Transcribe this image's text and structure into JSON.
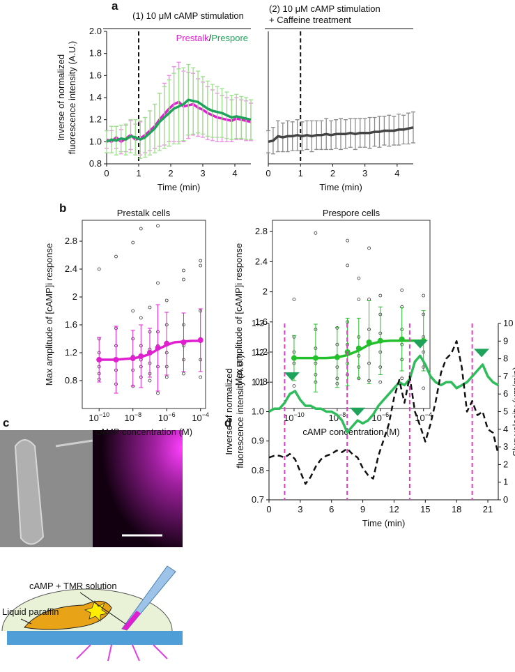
{
  "panel_labels": [
    "a",
    "b",
    "c",
    "d"
  ],
  "panel_c": {
    "labels": [
      "cAMP + TMR solution",
      "Liquid paraffin"
    ]
  },
  "chart_data": [
    {
      "type": "line",
      "title": "(1) 10 μM cAMP stimulation",
      "ylabel": [
        "Inverse of normalized",
        "fluorescence intensity (A.U.)"
      ],
      "xlabel": "Time (min)",
      "x": [
        0,
        0.15,
        0.3,
        0.45,
        0.6,
        0.75,
        0.9,
        1.05,
        1.2,
        1.35,
        1.5,
        1.65,
        1.8,
        1.95,
        2.1,
        2.25,
        2.4,
        2.55,
        2.7,
        2.85,
        3.0,
        3.15,
        3.3,
        3.45,
        3.6,
        3.75,
        3.9,
        4.05,
        4.2,
        4.35,
        4.5
      ],
      "series": [
        {
          "name": "Prestalk",
          "color": "#e020d0",
          "error_color": "#ec8fe4",
          "values": [
            1.02,
            1.0,
            1.04,
            1.0,
            1.03,
            1.06,
            1.02,
            1.03,
            1.06,
            1.1,
            1.14,
            1.2,
            1.25,
            1.3,
            1.34,
            1.36,
            1.32,
            1.33,
            1.34,
            1.31,
            1.29,
            1.26,
            1.24,
            1.22,
            1.21,
            1.2,
            1.19,
            1.21,
            1.2,
            1.19,
            1.18
          ],
          "errors": [
            0.08,
            0.1,
            0.1,
            0.11,
            0.12,
            0.13,
            0.14,
            0.15,
            0.16,
            0.18,
            0.2,
            0.24,
            0.28,
            0.3,
            0.34,
            0.36,
            0.32,
            0.3,
            0.28,
            0.26,
            0.25,
            0.24,
            0.23,
            0.22,
            0.21,
            0.2,
            0.19,
            0.19,
            0.18,
            0.18,
            0.17
          ]
        },
        {
          "name": "Prespore",
          "color": "#1fa35a",
          "error_color": "#9be08a",
          "values": [
            1.0,
            1.02,
            1.01,
            1.03,
            1.02,
            1.05,
            1.04,
            1.02,
            1.04,
            1.08,
            1.12,
            1.18,
            1.22,
            1.26,
            1.3,
            1.32,
            1.34,
            1.38,
            1.37,
            1.36,
            1.33,
            1.3,
            1.28,
            1.27,
            1.26,
            1.24,
            1.22,
            1.23,
            1.22,
            1.21,
            1.2
          ],
          "errors": [
            0.1,
            0.12,
            0.13,
            0.12,
            0.14,
            0.15,
            0.16,
            0.17,
            0.18,
            0.2,
            0.22,
            0.26,
            0.28,
            0.3,
            0.32,
            0.34,
            0.33,
            0.32,
            0.3,
            0.28,
            0.26,
            0.25,
            0.24,
            0.23,
            0.22,
            0.21,
            0.2,
            0.2,
            0.19,
            0.19,
            0.18
          ]
        }
      ],
      "legend_separator": "/",
      "vlines": [
        1
      ],
      "xlim": [
        0,
        4.5
      ],
      "xticks": [
        0,
        1,
        2,
        3,
        4
      ],
      "ylim": [
        0.8,
        2.0
      ],
      "yticks": [
        0.8,
        {
          "value": 1,
          "label": "1.0"
        },
        1.2,
        1.4,
        1.6,
        1.8,
        {
          "value": 2,
          "label": "2.0"
        }
      ]
    },
    {
      "type": "line",
      "title": [
        "(2) 10 μM cAMP stimulation",
        "+ Caffeine treatment"
      ],
      "xlabel": "Time (min)",
      "x": [
        0,
        0.15,
        0.3,
        0.45,
        0.6,
        0.75,
        0.9,
        1.05,
        1.2,
        1.35,
        1.5,
        1.65,
        1.8,
        1.95,
        2.1,
        2.25,
        2.4,
        2.55,
        2.7,
        2.85,
        3.0,
        3.15,
        3.3,
        3.45,
        3.6,
        3.75,
        3.9,
        4.05,
        4.2,
        4.35,
        4.5
      ],
      "series": [
        {
          "color": "#444444",
          "error_color": "#8c8c8c",
          "values": [
            1.0,
            1.01,
            1.05,
            1.04,
            1.05,
            1.05,
            1.06,
            1.05,
            1.06,
            1.05,
            1.06,
            1.06,
            1.07,
            1.06,
            1.07,
            1.07,
            1.07,
            1.08,
            1.07,
            1.08,
            1.08,
            1.08,
            1.09,
            1.09,
            1.1,
            1.1,
            1.1,
            1.11,
            1.11,
            1.12,
            1.13
          ],
          "errors": [
            0.1,
            0.12,
            0.14,
            0.13,
            0.14,
            0.13,
            0.14,
            0.13,
            0.13,
            0.14,
            0.13,
            0.13,
            0.14,
            0.13,
            0.13,
            0.14,
            0.13,
            0.13,
            0.14,
            0.13,
            0.13,
            0.14,
            0.13,
            0.14,
            0.13,
            0.14,
            0.13,
            0.14,
            0.13,
            0.14,
            0.14
          ]
        }
      ],
      "vlines": [
        1
      ],
      "xlim": [
        0,
        4.5
      ],
      "xticks": [
        0,
        1,
        2,
        3,
        4
      ],
      "ylim": [
        0.8,
        2.0
      ]
    },
    {
      "type": "scatter",
      "title": "Prestalk cells",
      "title_color": "#e020d0",
      "ylabel": "Max amplitude of [cAMP]i response",
      "xlabel": "cAMP concentration (M)",
      "xscale": "log",
      "frame": true,
      "color": "#e020d0",
      "points": {
        "x": [
          1e-10,
          1e-10,
          1e-10,
          1e-10,
          1e-10,
          1e-10,
          1e-09,
          1e-09,
          1e-09,
          1e-09,
          1e-09,
          1e-09,
          1e-08,
          1e-08,
          1e-08,
          1e-08,
          1e-08,
          1e-08,
          3e-08,
          3e-08,
          3e-08,
          3e-08,
          3e-08,
          3e-08,
          1e-07,
          1e-07,
          1e-07,
          1e-07,
          1e-07,
          1e-07,
          3e-07,
          3e-07,
          3e-07,
          3e-07,
          3e-07,
          3e-07,
          1e-06,
          1e-06,
          1e-06,
          1e-06,
          1e-06,
          1e-06,
          1e-05,
          1e-05,
          1e-05,
          1e-05,
          1e-05,
          1e-05,
          0.0001,
          0.0001,
          0.0001,
          0.0001,
          0.0001,
          0.0001
        ],
        "y": [
          2.4,
          1.4,
          1.2,
          1.0,
          0.9,
          0.82,
          2.58,
          1.55,
          1.3,
          1.1,
          0.95,
          0.75,
          2.78,
          1.8,
          1.4,
          1.15,
          0.95,
          0.72,
          2.98,
          1.7,
          1.3,
          1.1,
          1.0,
          0.85,
          1.85,
          1.5,
          1.25,
          1.05,
          0.9,
          0.8,
          3.02,
          2.2,
          1.5,
          1.3,
          1.0,
          0.62,
          1.95,
          1.6,
          1.35,
          1.2,
          1.0,
          0.85,
          2.38,
          2.25,
          1.6,
          1.3,
          1.1,
          0.9,
          2.52,
          2.45,
          1.8,
          1.4,
          1.1,
          0.85
        ]
      },
      "conc": [
        1e-10,
        1e-09,
        1e-08,
        3e-08,
        1e-07,
        3e-07,
        1e-06,
        1e-05,
        0.0001
      ],
      "means": [
        1.1,
        1.1,
        1.12,
        1.15,
        1.2,
        1.27,
        1.33,
        1.35,
        1.38
      ],
      "errors": [
        0.32,
        0.48,
        0.4,
        0.45,
        0.35,
        0.62,
        0.45,
        0.42,
        0.45
      ],
      "fit": {
        "x": [
          1e-10,
          3e-10,
          1e-09,
          3e-09,
          1e-08,
          3e-08,
          1e-07,
          3e-07,
          1e-06,
          3e-06,
          1e-05,
          3e-05,
          0.0001
        ],
        "y": [
          1.1,
          1.1,
          1.1,
          1.11,
          1.12,
          1.14,
          1.18,
          1.25,
          1.31,
          1.35,
          1.36,
          1.37,
          1.37
        ]
      },
      "xlim": [
        1e-11,
        0.0002
      ],
      "xticks": [
        {
          "value": 1e-10,
          "label": "10−10"
        },
        {
          "value": 1e-08,
          "label": "10−8"
        },
        {
          "value": 1e-06,
          "label": "10−6"
        },
        {
          "value": 0.0001,
          "label": "10−4"
        }
      ],
      "ylim": [
        0.4,
        3.1
      ],
      "yticks": [
        0.8,
        1.2,
        1.6,
        2,
        2.4,
        2.8
      ]
    },
    {
      "type": "scatter",
      "title": "Prespore cells",
      "title_color": "#22b03a",
      "ylabel": "Max amplitude of [cAMP]i response",
      "xlabel": "cAMP concentration (M)",
      "xscale": "log",
      "frame": true,
      "color": "#22c02a",
      "points": {
        "x": [
          1e-10,
          1e-10,
          1e-10,
          1e-10,
          1e-10,
          1e-10,
          1e-09,
          1e-09,
          1e-09,
          1e-09,
          1e-09,
          1e-09,
          1e-08,
          1e-08,
          1e-08,
          1e-08,
          1e-08,
          1e-08,
          3e-08,
          3e-08,
          3e-08,
          3e-08,
          3e-08,
          3e-08,
          1e-07,
          1e-07,
          1e-07,
          1e-07,
          1e-07,
          1e-07,
          3e-07,
          3e-07,
          3e-07,
          3e-07,
          3e-07,
          3e-07,
          1e-06,
          1e-06,
          1e-06,
          1e-06,
          1e-06,
          1e-06,
          1e-05,
          1e-05,
          1e-05,
          1e-05,
          1e-05,
          1e-05,
          0.0001,
          0.0001,
          0.0001,
          0.0001,
          0.0001,
          0.0001
        ],
        "y": [
          1.9,
          1.4,
          1.2,
          1.05,
          0.9,
          0.75,
          2.78,
          1.5,
          1.25,
          1.05,
          0.9,
          0.8,
          1.52,
          1.3,
          1.15,
          1.0,
          0.85,
          0.78,
          2.68,
          2.35,
          1.6,
          1.3,
          1.05,
          0.9,
          2.18,
          1.9,
          1.4,
          1.15,
          1.0,
          0.85,
          2.58,
          1.9,
          1.5,
          1.3,
          1.05,
          0.82,
          1.95,
          1.7,
          1.45,
          1.2,
          1.0,
          0.8,
          2.02,
          1.8,
          1.5,
          1.3,
          1.1,
          0.85,
          1.95,
          1.7,
          1.4,
          1.2,
          1.0,
          0.72
        ]
      },
      "conc": [
        1e-10,
        1e-09,
        1e-08,
        3e-08,
        1e-07,
        3e-07,
        1e-06,
        1e-05,
        0.0001
      ],
      "means": [
        1.12,
        1.12,
        1.13,
        1.2,
        1.25,
        1.33,
        1.35,
        1.37,
        1.35
      ],
      "errors": [
        0.3,
        0.45,
        0.4,
        0.45,
        0.4,
        0.55,
        0.45,
        0.42,
        0.4
      ],
      "fit": {
        "x": [
          1e-10,
          3e-10,
          1e-09,
          3e-09,
          1e-08,
          3e-08,
          1e-07,
          3e-07,
          1e-06,
          3e-06,
          1e-05,
          3e-05,
          0.0001
        ],
        "y": [
          1.12,
          1.12,
          1.12,
          1.12,
          1.13,
          1.16,
          1.22,
          1.3,
          1.34,
          1.35,
          1.35,
          1.35,
          1.35
        ]
      },
      "xlim": [
        1e-11,
        0.0002
      ],
      "xticks": [
        {
          "value": 1e-10,
          "label": "10−10"
        },
        {
          "value": 1e-08,
          "label": "10−8"
        },
        {
          "value": 1e-06,
          "label": "10−6"
        },
        {
          "value": 0.0001,
          "label": "10−4"
        }
      ],
      "ylim": [
        0.45,
        2.95
      ],
      "yticks": [
        0.8,
        1.2,
        1.6,
        2,
        2.4,
        2.8
      ]
    },
    {
      "type": "line",
      "ylabel": [
        "Inverse of normalized",
        "fluorescence intensity (A.U.)"
      ],
      "ylabel_color": "#1fa35a",
      "y2label": "Slug velocity (μm/min)",
      "xlabel": "Time (min)",
      "x": [
        0,
        0.5,
        1,
        1.5,
        2,
        2.5,
        3,
        3.5,
        4,
        4.5,
        5,
        5.5,
        6,
        6.5,
        7,
        7.5,
        8,
        8.5,
        9,
        9.5,
        10,
        10.5,
        11,
        11.5,
        12,
        12.5,
        13,
        13.5,
        14,
        14.5,
        15,
        15.5,
        16,
        16.5,
        17,
        17.5,
        18,
        18.5,
        19,
        19.5,
        20,
        20.5,
        21,
        21.5,
        22
      ],
      "series": [
        {
          "color": "#2ebd5a",
          "values": [
            1.0,
            1.01,
            1.01,
            1.03,
            1.06,
            1.07,
            1.04,
            1.02,
            1.02,
            1.01,
            1.01,
            1.0,
            1.0,
            0.99,
            0.97,
            0.93,
            0.95,
            0.97,
            0.96,
            0.97,
            0.99,
            1.02,
            1.04,
            1.06,
            1.08,
            1.1,
            1.09,
            1.11,
            1.17,
            1.19,
            1.16,
            1.12,
            1.1,
            1.09,
            1.1,
            1.1,
            1.08,
            1.09,
            1.1,
            1.12,
            1.14,
            1.16,
            1.12,
            1.1,
            1.09
          ]
        },
        {
          "color": "#111111",
          "axis": "y2",
          "dash": true,
          "values": [
            2.4,
            2.5,
            2.5,
            2.4,
            2.6,
            2.3,
            1.6,
            0.9,
            1.3,
            1.9,
            2.3,
            2.5,
            2.6,
            2.8,
            2.7,
            2.9,
            2.6,
            2.4,
            1.8,
            1.4,
            1.2,
            2.5,
            3.4,
            4.3,
            5.8,
            6.8,
            5.5,
            7.0,
            5.0,
            4.2,
            3.3,
            4.3,
            5.6,
            7.2,
            8.0,
            8.3,
            9.0,
            7.5,
            5.0,
            5.6,
            4.8,
            5.0,
            4.0,
            3.8,
            2.6
          ]
        }
      ],
      "vlines": [
        1.5,
        7.5,
        13.5,
        19.5
      ],
      "vline_color": "#e040c0",
      "markers": {
        "x": [
          2.2,
          8.5,
          14.5,
          20.4
        ],
        "y": [
          1.11,
          0.99,
          1.22,
          1.19
        ],
        "color": "#1fa35a"
      },
      "xlim": [
        0,
        22
      ],
      "xticks": [
        0,
        3,
        6,
        9,
        12,
        15,
        18,
        21
      ],
      "ylim": [
        0.7,
        1.3
      ],
      "yticks": [
        0.7,
        0.8,
        0.9,
        {
          "value": 1,
          "label": "1.0"
        },
        1.1,
        1.2,
        1.3
      ],
      "y2lim": [
        0,
        10
      ],
      "y2ticks": [
        0,
        1,
        2,
        3,
        4,
        5,
        6,
        7,
        8,
        9,
        10
      ]
    }
  ]
}
